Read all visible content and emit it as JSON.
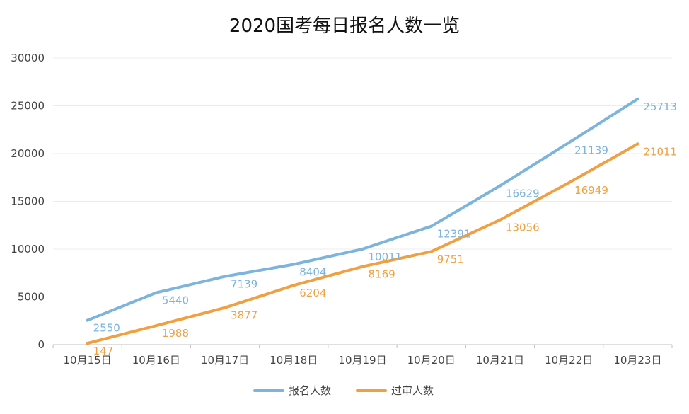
{
  "chart_data": {
    "type": "line",
    "title": "2020国考每日报名人数一览",
    "xlabel": "",
    "ylabel": "",
    "ylim": [
      0,
      30000
    ],
    "yticks": [
      0,
      5000,
      10000,
      15000,
      20000,
      25000,
      30000
    ],
    "categories": [
      "10月15日",
      "10月16日",
      "10月17日",
      "10月18日",
      "10月19日",
      "10月20日",
      "10月21日",
      "10月22日",
      "10月23日"
    ],
    "series": [
      {
        "name": "报名人数",
        "color": "#7db4dc",
        "values": [
          2550,
          5440,
          7139,
          8404,
          10011,
          12391,
          16629,
          21139,
          25713
        ]
      },
      {
        "name": "过审人数",
        "color": "#f0a040",
        "values": [
          147,
          1988,
          3877,
          6204,
          8169,
          9751,
          13056,
          16949,
          21011
        ]
      }
    ],
    "grid": true,
    "legend": "bottom"
  }
}
